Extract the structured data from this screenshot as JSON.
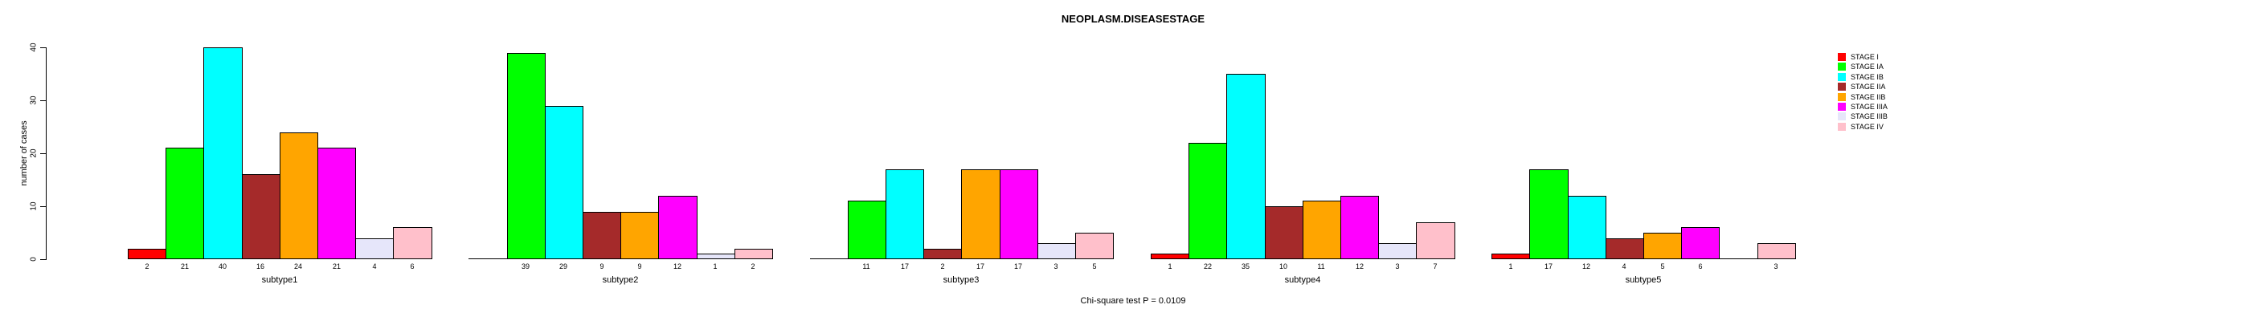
{
  "title": "NEOPLASM.DISEASESTAGE",
  "footer": "Chi-square test P = 0.0109",
  "chart_data": {
    "type": "bar",
    "layout": "grouped",
    "title": "NEOPLASM.DISEASESTAGE",
    "xlabel": "",
    "ylabel": "number of cases",
    "ylim": [
      0,
      40
    ],
    "yticks": [
      0,
      10,
      20,
      30,
      40
    ],
    "grid": false,
    "legend_position": "right",
    "bar_value_labels": true,
    "categories": [
      "subtype1",
      "subtype2",
      "subtype3",
      "subtype4",
      "subtype5"
    ],
    "series": [
      {
        "name": "STAGE I",
        "color": "#FF0000",
        "values": [
          2,
          0,
          0,
          1,
          1
        ]
      },
      {
        "name": "STAGE IA",
        "color": "#00FF00",
        "values": [
          21,
          39,
          11,
          22,
          17
        ]
      },
      {
        "name": "STAGE IB",
        "color": "#00FFFF",
        "values": [
          40,
          29,
          17,
          35,
          12
        ]
      },
      {
        "name": "STAGE IIA",
        "color": "#A52A2A",
        "values": [
          16,
          9,
          2,
          10,
          4
        ]
      },
      {
        "name": "STAGE IIB",
        "color": "#FFA500",
        "values": [
          24,
          9,
          17,
          11,
          5
        ]
      },
      {
        "name": "STAGE IIIA",
        "color": "#FF00FF",
        "values": [
          21,
          12,
          17,
          12,
          6
        ]
      },
      {
        "name": "STAGE IIIB",
        "color": "#E6E6FA",
        "values": [
          4,
          1,
          3,
          3,
          0
        ]
      },
      {
        "name": "STAGE IV",
        "color": "#FFC0CB",
        "values": [
          6,
          2,
          5,
          7,
          3
        ]
      }
    ],
    "annotation": "Chi-square test P = 0.0109",
    "axis_color": "#000000",
    "background_color": "#FFFFFF"
  }
}
